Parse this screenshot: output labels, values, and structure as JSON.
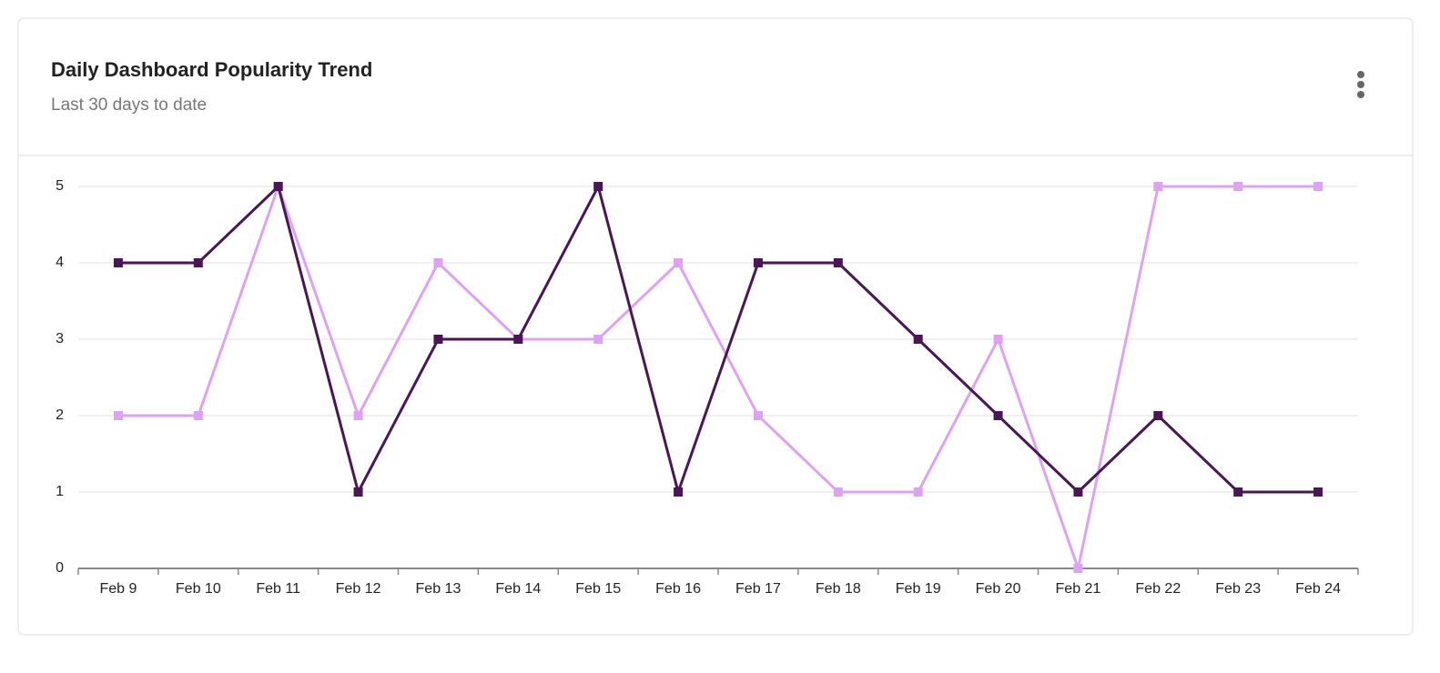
{
  "chart_data": {
    "type": "line",
    "title": "Daily Dashboard Popularity Trend",
    "subtitle": "Last 30 days to date",
    "categories": [
      "Feb 9",
      "Feb 10",
      "Feb 11",
      "Feb 12",
      "Feb 13",
      "Feb 14",
      "Feb 15",
      "Feb 16",
      "Feb 17",
      "Feb 18",
      "Feb 19",
      "Feb 20",
      "Feb 21",
      "Feb 22",
      "Feb 23",
      "Feb 24"
    ],
    "series": [
      {
        "color": "#dda3f2",
        "values": [
          2,
          2,
          5,
          2,
          4,
          3,
          3,
          4,
          2,
          1,
          1,
          3,
          0,
          5,
          5,
          5
        ]
      },
      {
        "color": "#4a1655",
        "values": [
          4,
          4,
          5,
          1,
          3,
          3,
          5,
          1,
          4,
          4,
          3,
          2,
          1,
          2,
          1,
          1
        ]
      }
    ],
    "ylim": [
      0,
      5
    ],
    "yticks": [
      0,
      1,
      2,
      3,
      4,
      5
    ],
    "grid": true
  }
}
